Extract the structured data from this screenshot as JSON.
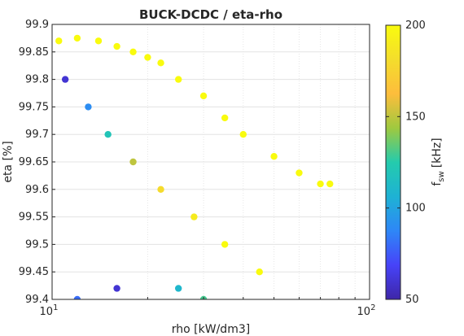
{
  "chart_data": {
    "type": "scatter",
    "title": "BUCK-DCDC / eta-rho",
    "xlabel": "rho [kW/dm3]",
    "ylabel": "eta [%]",
    "xscale": "log",
    "xlim": [
      10,
      100
    ],
    "ylim": [
      99.4,
      99.9
    ],
    "grid": true,
    "xticks": [
      {
        "value": 10,
        "base": "10",
        "exp": "1"
      },
      {
        "value": 100,
        "base": "10",
        "exp": "2"
      }
    ],
    "yticks": [
      "99.4",
      "99.45",
      "99.5",
      "99.55",
      "99.6",
      "99.65",
      "99.7",
      "99.75",
      "99.8",
      "99.85",
      "99.9"
    ],
    "colorbar": {
      "label_base": "f",
      "label_sub": "sw",
      "label_unit": "[kHz]",
      "range": [
        50,
        200
      ],
      "ticks": [
        "50",
        "100",
        "150",
        "200"
      ],
      "colormap": [
        "#3e26a8",
        "#4743f8",
        "#2e87f7",
        "#1eb2d4",
        "#24cbad",
        "#9fc93f",
        "#fdbd3c",
        "#f4dd2c",
        "#f9fb0e"
      ]
    },
    "series": [
      {
        "color_by": "f_sw [kHz]",
        "marker": "filled-circle",
        "points": [
          {
            "x": 10.5,
            "y": 99.87,
            "c": 200
          },
          {
            "x": 12.0,
            "y": 99.875,
            "c": 200
          },
          {
            "x": 14.0,
            "y": 99.87,
            "c": 200
          },
          {
            "x": 16.0,
            "y": 99.86,
            "c": 200
          },
          {
            "x": 18.0,
            "y": 99.85,
            "c": 200
          },
          {
            "x": 20.0,
            "y": 99.84,
            "c": 200
          },
          {
            "x": 22.0,
            "y": 99.83,
            "c": 200
          },
          {
            "x": 25.0,
            "y": 99.8,
            "c": 200
          },
          {
            "x": 30.0,
            "y": 99.77,
            "c": 200
          },
          {
            "x": 35.0,
            "y": 99.73,
            "c": 200
          },
          {
            "x": 40.0,
            "y": 99.7,
            "c": 200
          },
          {
            "x": 50.0,
            "y": 99.66,
            "c": 200
          },
          {
            "x": 60.0,
            "y": 99.63,
            "c": 200
          },
          {
            "x": 70.0,
            "y": 99.61,
            "c": 200
          },
          {
            "x": 75.0,
            "y": 99.61,
            "c": 200
          },
          {
            "x": 11.0,
            "y": 99.8,
            "c": 60
          },
          {
            "x": 13.0,
            "y": 99.75,
            "c": 90
          },
          {
            "x": 15.0,
            "y": 99.7,
            "c": 120
          },
          {
            "x": 18.0,
            "y": 99.65,
            "c": 150
          },
          {
            "x": 22.0,
            "y": 99.6,
            "c": 180
          },
          {
            "x": 28.0,
            "y": 99.55,
            "c": 190
          },
          {
            "x": 35.0,
            "y": 99.5,
            "c": 200
          },
          {
            "x": 45.0,
            "y": 99.45,
            "c": 200
          },
          {
            "x": 12.0,
            "y": 99.4,
            "c": 80
          },
          {
            "x": 16.0,
            "y": 99.42,
            "c": 60
          },
          {
            "x": 25.0,
            "y": 99.42,
            "c": 110
          },
          {
            "x": 30.0,
            "y": 99.4,
            "c": 130
          }
        ]
      }
    ]
  }
}
